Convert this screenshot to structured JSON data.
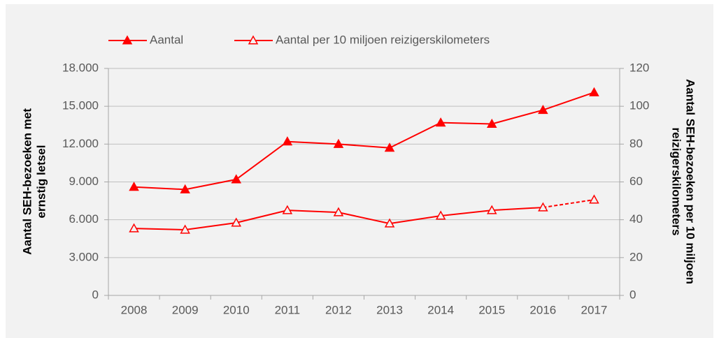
{
  "chart_data": {
    "type": "line",
    "categories": [
      "2008",
      "2009",
      "2010",
      "2011",
      "2012",
      "2013",
      "2014",
      "2015",
      "2016",
      "2017"
    ],
    "series": [
      {
        "name": "Aantal",
        "color": "#ff0000",
        "marker": "filled-triangle",
        "values": [
          8600,
          8400,
          9200,
          12200,
          12000,
          11700,
          13700,
          13600,
          14700,
          16100
        ]
      },
      {
        "name": "Aantal per 10 miljoen reizigerskilometers",
        "color": "#ff0000",
        "marker": "open-triangle",
        "axis": "y2",
        "dash_last": true,
        "values": [
          35.4,
          34.7,
          38.4,
          45.0,
          43.9,
          38.0,
          42.1,
          45.0,
          46.5,
          50.6
        ]
      }
    ],
    "ylabel": [
      "Aantal SEH-bezoeken met",
      "ernstig letsel"
    ],
    "y2label": [
      "Aantal SEH-bezoeken per 10 miljoen",
      "reizigerskilometers"
    ],
    "ylim": [
      0,
      18000
    ],
    "yticks": [
      0,
      {
        "value": 3000,
        "label": "3.000"
      },
      {
        "value": 6000,
        "label": "6.000"
      },
      {
        "value": 9000,
        "label": "9.000"
      },
      {
        "value": 12000,
        "label": "12.000"
      },
      {
        "value": 15000,
        "label": "15.000"
      },
      {
        "value": 18000,
        "label": "18.000"
      }
    ],
    "y2lim": [
      0,
      120
    ],
    "y2ticks": [
      0,
      20,
      40,
      60,
      80,
      100,
      120
    ],
    "grid": true,
    "legend": "top"
  }
}
